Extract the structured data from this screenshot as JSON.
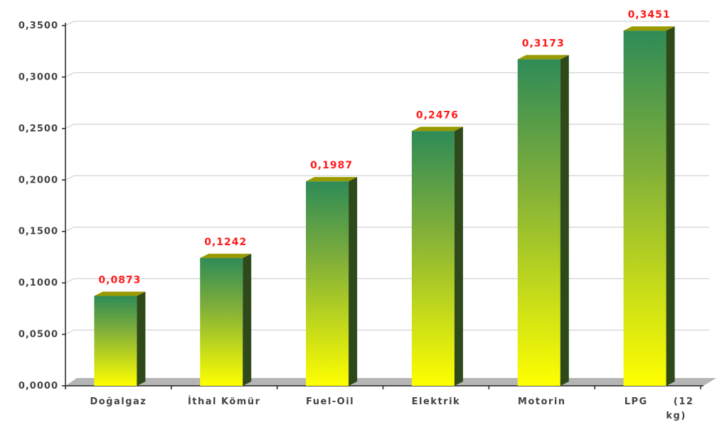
{
  "chart_data": {
    "type": "bar",
    "title": "",
    "xlabel": "",
    "ylabel": "",
    "categories": [
      "Doğalgaz",
      "İthal Kömür",
      "Fuel-Oil",
      "Elektrik",
      "Motorin",
      "LPG      (12 kg)"
    ],
    "values": [
      0.0873,
      0.1242,
      0.1987,
      0.2476,
      0.3173,
      0.3451
    ],
    "value_labels": [
      "0,0873",
      "0,1242",
      "0,1987",
      "0,2476",
      "0,3173",
      "0,3451"
    ],
    "ylim": [
      0,
      0.35
    ],
    "yticks": [
      0,
      0.05,
      0.1,
      0.15,
      0.2,
      0.25,
      0.3,
      0.35
    ],
    "ytick_labels": [
      "0,0000",
      "0,0500",
      "0,1000",
      "0,1500",
      "0,2000",
      "0,2500",
      "0,3000",
      "0,3500"
    ],
    "grid": true,
    "legend": "none",
    "colors": {
      "bar_top_gradient": "#2e8b57",
      "bar_bottom_gradient": "#ffff00",
      "bar_side": "#2e4a1a",
      "bar_cap": "#9a9a00",
      "floor": "#b5b5b5",
      "gridline": "#c8c8c8",
      "value_label": "#ff1a1a",
      "tick_label": "#444444"
    }
  }
}
